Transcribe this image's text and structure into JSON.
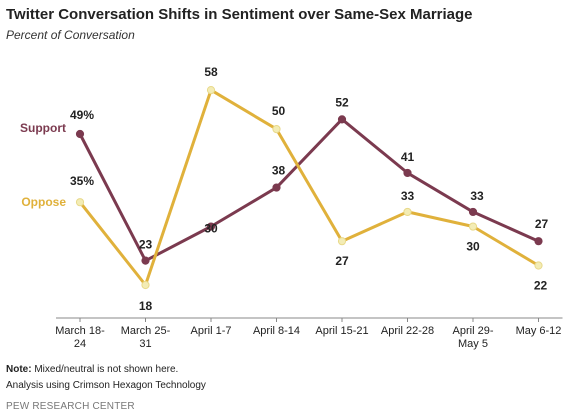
{
  "chart_data": {
    "type": "line",
    "title": "Twitter Conversation  Shifts in Sentiment over Same-Sex Marriage",
    "subtitle": "Percent of Conversation",
    "categories": [
      [
        "March 18-",
        "24"
      ],
      [
        "March 25-",
        "31"
      ],
      [
        "April 1-7"
      ],
      [
        "April 8-14"
      ],
      [
        "April 15-21"
      ],
      [
        "April 22-28"
      ],
      [
        "April 29-",
        "May 5"
      ],
      [
        "May 6-12"
      ]
    ],
    "series": [
      {
        "name": "Support",
        "color": "#7b3a4f",
        "values": [
          49,
          23,
          30,
          38,
          52,
          41,
          33,
          27
        ],
        "labels": [
          "49%",
          "23",
          "30",
          "38",
          "52",
          "41",
          "33",
          "27"
        ]
      },
      {
        "name": "Oppose",
        "color": "#e0b13b",
        "values": [
          35,
          18,
          58,
          50,
          27,
          33,
          30,
          22
        ],
        "labels": [
          "35%",
          "18",
          "58",
          "50",
          "27",
          "33",
          "30",
          "22"
        ]
      }
    ],
    "ylim": [
      10,
      65
    ],
    "grid": false,
    "legend": "left, inline labels"
  },
  "notes": {
    "note_label": "Note:",
    "note_text": " Mixed/neutral is not shown here.",
    "analysis": "Analysis using Crimson Hexagon Technology",
    "source": "PEW RESEARCH CENTER"
  }
}
